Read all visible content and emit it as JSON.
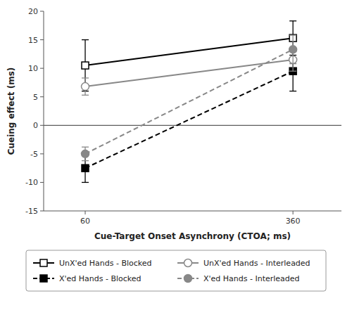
{
  "chart_data": {
    "type": "line",
    "x": [
      60,
      360
    ],
    "series": [
      {
        "name": "UnX'ed Hands - Blocked",
        "color": "#000000",
        "line_style": "solid",
        "marker": "open-square",
        "values": [
          10.5,
          15.3
        ],
        "errors": [
          4.5,
          3.0
        ]
      },
      {
        "name": "X'ed Hands - Blocked",
        "color": "#000000",
        "line_style": "dashed",
        "marker": "square",
        "values": [
          -7.5,
          9.5
        ],
        "errors": [
          2.5,
          3.5
        ]
      },
      {
        "name": "UnX'ed Hands - Interleaded",
        "color": "#888888",
        "line_style": "solid",
        "marker": "open-circle",
        "values": [
          6.8,
          11.5
        ],
        "errors": [
          1.5,
          2.0
        ]
      },
      {
        "name": "X'ed Hands - Interleaded",
        "color": "#888888",
        "line_style": "dashed",
        "marker": "circle",
        "values": [
          -5.0,
          13.3
        ],
        "errors": [
          1.2,
          2.5
        ]
      }
    ],
    "xlabel": "Cue-Target Onset Asynchrony (CTOA; ms)",
    "ylabel": "Cueing effect (ms)",
    "xlim": [
      0,
      430
    ],
    "xticks": [
      60,
      360
    ],
    "ylim": [
      -15,
      20
    ],
    "yticks": [
      -15,
      -10,
      -5,
      0,
      5,
      10,
      15,
      20
    ],
    "legend": "bottom"
  }
}
